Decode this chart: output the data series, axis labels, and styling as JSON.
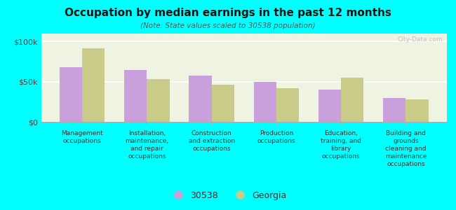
{
  "title": "Occupation by median earnings in the past 12 months",
  "subtitle": "(Note: State values scaled to 30538 population)",
  "categories": [
    "Management\noccupations",
    "Installation,\nmaintenance,\nand repair\noccupations",
    "Construction\nand extraction\noccupations",
    "Production\noccupations",
    "Education,\ntraining, and\nlibrary\noccupations",
    "Building and\ngrounds\ncleaning and\nmaintenance\noccupations"
  ],
  "values_30538": [
    68000,
    65000,
    58000,
    50000,
    40000,
    30000
  ],
  "values_georgia": [
    92000,
    53000,
    46000,
    42000,
    55000,
    28000
  ],
  "color_30538": "#c9a0dc",
  "color_georgia": "#c8cc88",
  "ylim": [
    0,
    110000
  ],
  "yticks": [
    0,
    50000,
    100000
  ],
  "ytick_labels": [
    "$0",
    "$50k",
    "$100k"
  ],
  "background_color": "#00ffff",
  "plot_bg_color": "#eef3e2",
  "legend_label_30538": "30538",
  "legend_label_georgia": "Georgia",
  "watermark": "City-Data.com",
  "bar_width": 0.35
}
